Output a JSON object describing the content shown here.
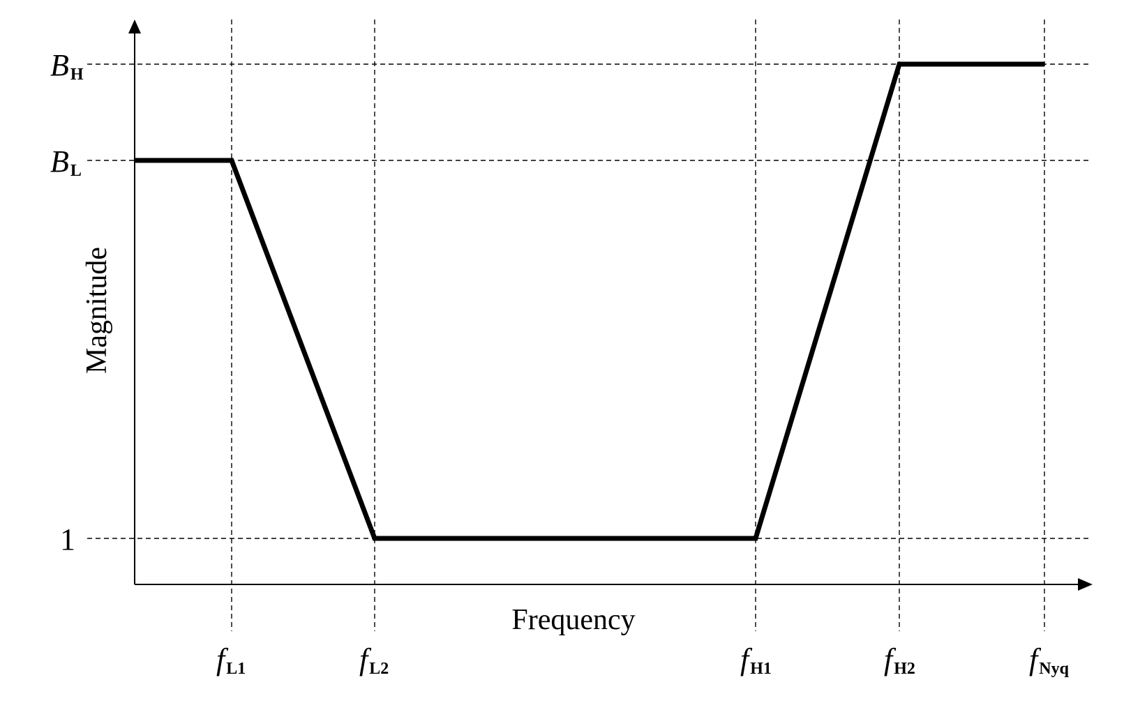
{
  "chart_data": {
    "type": "line",
    "xlabel": "Frequency",
    "ylabel": "Magnitude",
    "x_ticks": [
      {
        "id": "fL1",
        "base": "f",
        "sub": "L1"
      },
      {
        "id": "fL2",
        "base": "f",
        "sub": "L2"
      },
      {
        "id": "fH1",
        "base": "f",
        "sub": "H1"
      },
      {
        "id": "fH2",
        "base": "f",
        "sub": "H2"
      },
      {
        "id": "fNyq",
        "base": "f",
        "sub": "Nyq"
      }
    ],
    "y_ticks": [
      {
        "id": "BH",
        "base": "B",
        "sub": "H"
      },
      {
        "id": "BL",
        "base": "B",
        "sub": "L"
      },
      {
        "id": "one",
        "base": "1",
        "sub": ""
      }
    ],
    "series": [
      {
        "points": [
          {
            "x": "start",
            "y": "BL"
          },
          {
            "x": "fL1",
            "y": "BL"
          },
          {
            "x": "fL2",
            "y": "one"
          },
          {
            "x": "fH1",
            "y": "one"
          },
          {
            "x": "fH2",
            "y": "BH"
          },
          {
            "x": "fNyq",
            "y": "BH"
          }
        ]
      }
    ],
    "grid": "dashed reference lines at each tick",
    "line_color": "#000000"
  }
}
